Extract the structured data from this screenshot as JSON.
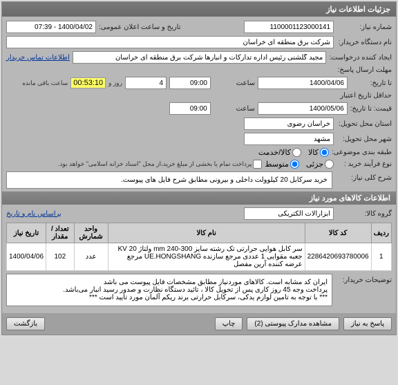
{
  "panel_title": "جزئیات اطلاعات نیاز",
  "f": {
    "req_no_lbl": "شماره نیاز:",
    "req_no": "1100001123000141",
    "announce_lbl": "تاریخ و ساعت اعلان عمومی:",
    "announce": "1400/04/02 - 07:39",
    "buyer_lbl": "نام دستگاه خریدار:",
    "buyer": "شرکت برق منطقه ای خراسان",
    "creator_lbl": "ایجاد کننده درخواست:",
    "creator": "مجید گلشنی رئیس اداره تدارکات و انبارها شرکت برق منطقه ای خراسان",
    "contact_link": "اطلاعات تماس خریدار",
    "resp_deadline_lbl": "مهلت ارسال پاسخ:",
    "resp_to_lbl": "تا تاریخ:",
    "resp_date": "1400/04/06",
    "resp_time_lbl": "ساعت",
    "resp_time": "09:00",
    "days_lbl": "روز و",
    "days": "4",
    "remain": "00:53:10",
    "remain_lbl": "ساعت باقی مانده",
    "valid_lbl": "حداقل تاریخ اعتبار",
    "valid_to_lbl": "قیمت: تا تاریخ:",
    "valid_date": "1400/05/06",
    "valid_time_lbl": "ساعت",
    "valid_time": "09:00",
    "province_lbl": "استان محل تحویل:",
    "province": "خراسان رضوی",
    "city_lbl": "شهر محل تحویل:",
    "city": "مشهد",
    "budget_lbl": "طبقه بندی موضوعی:",
    "opt_goods": "کالا",
    "opt_service": "کالا/خدمت",
    "proc_lbl": "نوع فرآیند خرید :",
    "proc_low": "جزئی",
    "proc_mid": "متوسط",
    "pay_note": "پرداخت تمام یا بخشی از مبلغ خرید،از محل \"اسناد خزانه اسلامی\" خواهد بود.",
    "main_desc_lbl": "شرح کلی نیاز:",
    "main_desc": "خرید سرکابل 20 کیلوولت داخلی و بیرونی مطابق شرح فایل های پیوست.",
    "items_hdr": "اطلاعات کالاهای مورد نیاز",
    "group_lbl": "گروه کالا:",
    "group": "ابزارآلات الکتریکی",
    "date_sort": "براساس نام و تاریخ",
    "buyer_desc_lbl": "توضیحات خریدار:",
    "buyer_desc": "ایران کد مشابه است. کالاهای موردنیاز مطابق مشخصات فایل پیوست می باشد\nپرداخت وجه 45 روز کاری پس از تحویل کالا ، تائید دستگاه نظارت و صدور رسید انبار می‌باشد.\n*** با توجه به تامین لوازم یدکی، سرکابل حرارتی برند ریکم آلمان مورد تایید است ***"
  },
  "tbl": {
    "h": [
      "ردیف",
      "کد کالا",
      "نام کالا",
      "واحد شمارش",
      "تعداد / مقدار",
      "تاریخ نیاز"
    ],
    "r": [
      "1",
      "2286420693780006",
      "سر کابل هوایی حرارتی تک رشته سایز 300-240 mm ولتاژ KV 20 جعبه مقوایی 1 عددی مرجع سازنده UE.HONGSHANG مرجع عرضه کننده آرین مفصل",
      "عدد",
      "102",
      "1400/04/06"
    ]
  },
  "btns": {
    "back": "بازگشت",
    "attach": "مشاهده مدارک پیوستی (2)",
    "print": "چاپ",
    "reply": "پاسخ به نیاز"
  }
}
